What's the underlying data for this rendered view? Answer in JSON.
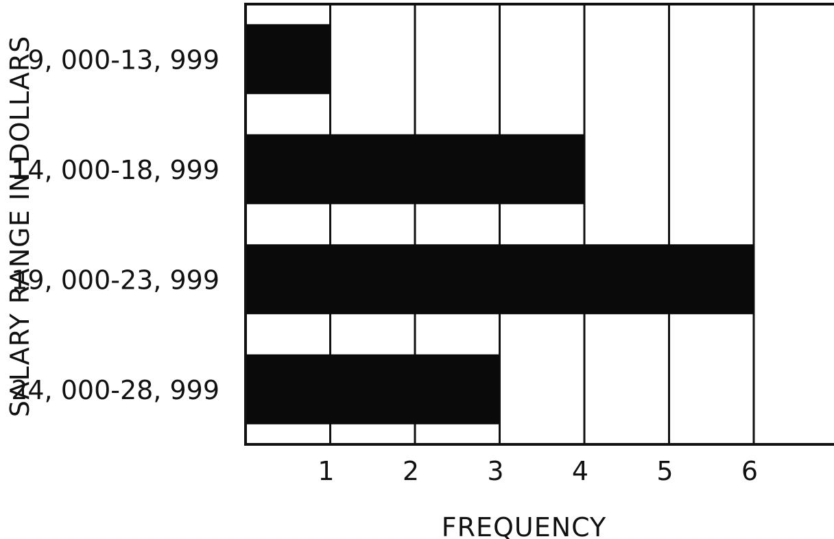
{
  "chart_data": {
    "type": "bar",
    "orientation": "horizontal",
    "categories": [
      "9, 000-13, 999",
      "14, 000-18, 999",
      "19, 000-23, 999",
      "24, 000-28, 999"
    ],
    "values": [
      1,
      4,
      6,
      3
    ],
    "xlabel": "FREQUENCY",
    "ylabel": "SALARY RANGE IN DOLLARS",
    "xticks": [
      "1",
      "2",
      "3",
      "4",
      "5",
      "6"
    ],
    "xlim": [
      0,
      7
    ],
    "grid": true,
    "bar_color": "#0a0a0a"
  }
}
